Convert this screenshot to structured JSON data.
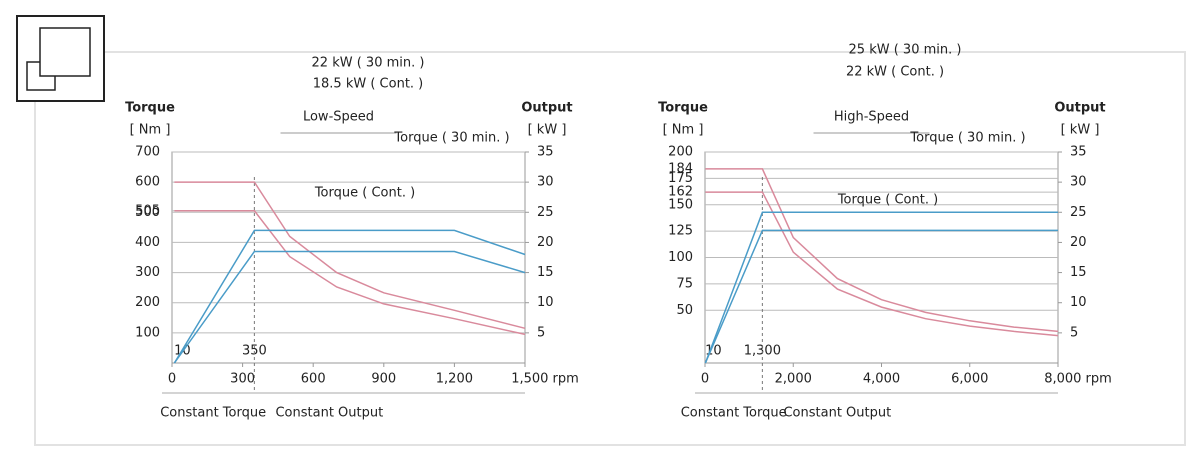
{
  "chart_data": [
    {
      "type": "line",
      "title": "Low-Speed",
      "y_label": "Torque",
      "y_unit": "[ Nm ]",
      "y2_label": "Output",
      "y2_unit": "[ kW ]",
      "x": [
        10,
        350,
        500,
        700,
        900,
        1200,
        1500
      ],
      "series": [
        {
          "name": "Torque ( 30 min. )",
          "color": "#d98a9c",
          "values": [
            600,
            600,
            420,
            300,
            233,
            175,
            115
          ]
        },
        {
          "name": "Torque ( Cont. )",
          "color": "#d98a9c",
          "values": [
            505,
            505,
            353,
            252,
            196,
            147,
            95
          ]
        },
        {
          "name": "22 kW ( 30 min. )",
          "color": "#4a9cc8",
          "axis": "y2",
          "values": [
            0,
            22,
            22,
            22,
            22,
            22,
            18
          ]
        },
        {
          "name": "18.5 kW ( Cont. )",
          "color": "#4a9cc8",
          "axis": "y2",
          "values": [
            0,
            18.5,
            18.5,
            18.5,
            18.5,
            18.5,
            15
          ]
        }
      ],
      "xlim": [
        0,
        1500
      ],
      "xticks": [
        0,
        300,
        600,
        900,
        {
          "value": 1200,
          "label": "1,200"
        },
        {
          "value": 1500,
          "label": "1,500 rpm"
        }
      ],
      "ylim": [
        0,
        700
      ],
      "yticks": [
        100,
        200,
        300,
        400,
        500,
        505,
        600,
        700
      ],
      "y2lim": [
        0,
        35
      ],
      "y2ticks": [
        5,
        10,
        15,
        20,
        25,
        30,
        35
      ],
      "grid": true,
      "markers": [
        10,
        350
      ],
      "regions": [
        "Constant Torque",
        "Constant Output"
      ]
    },
    {
      "type": "line",
      "title": "High-Speed",
      "y_label": "Torque",
      "y_unit": "[ Nm ]",
      "y2_label": "Output",
      "y2_unit": "[ kW ]",
      "x": [
        10,
        1300,
        2000,
        3000,
        4000,
        5000,
        6000,
        7000,
        8000
      ],
      "series": [
        {
          "name": "Torque ( 30 min. )",
          "color": "#d98a9c",
          "values": [
            184,
            184,
            119,
            80,
            60,
            48,
            40,
            34,
            30
          ]
        },
        {
          "name": "Torque ( Cont. )",
          "color": "#d98a9c",
          "values": [
            162,
            162,
            105,
            70,
            53,
            42,
            35,
            30,
            26
          ]
        },
        {
          "name": "25 kW ( 30 min. )",
          "color": "#4a9cc8",
          "axis": "y2",
          "values": [
            0,
            25,
            25,
            25,
            25,
            25,
            25,
            25,
            25
          ]
        },
        {
          "name": "22 kW ( Cont. )",
          "color": "#4a9cc8",
          "axis": "y2",
          "values": [
            0,
            22,
            22,
            22,
            22,
            22,
            22,
            22,
            22
          ]
        }
      ],
      "xlim": [
        0,
        8000
      ],
      "xticks": [
        0,
        {
          "value": 2000,
          "label": "2,000"
        },
        {
          "value": 4000,
          "label": "4,000"
        },
        {
          "value": 6000,
          "label": "6,000"
        },
        {
          "value": 8000,
          "label": "8,000 rpm"
        }
      ],
      "ylim": [
        0,
        200
      ],
      "yticks": [
        50,
        75,
        100,
        125,
        150,
        162,
        175,
        184,
        200
      ],
      "y2lim": [
        0,
        35
      ],
      "y2ticks": [
        5,
        10,
        15,
        20,
        25,
        30,
        35
      ],
      "grid": true,
      "markers": [
        10,
        {
          "value": 1300,
          "label": "1,300"
        }
      ],
      "regions": [
        "Constant Torque",
        "Constant Output"
      ]
    }
  ]
}
